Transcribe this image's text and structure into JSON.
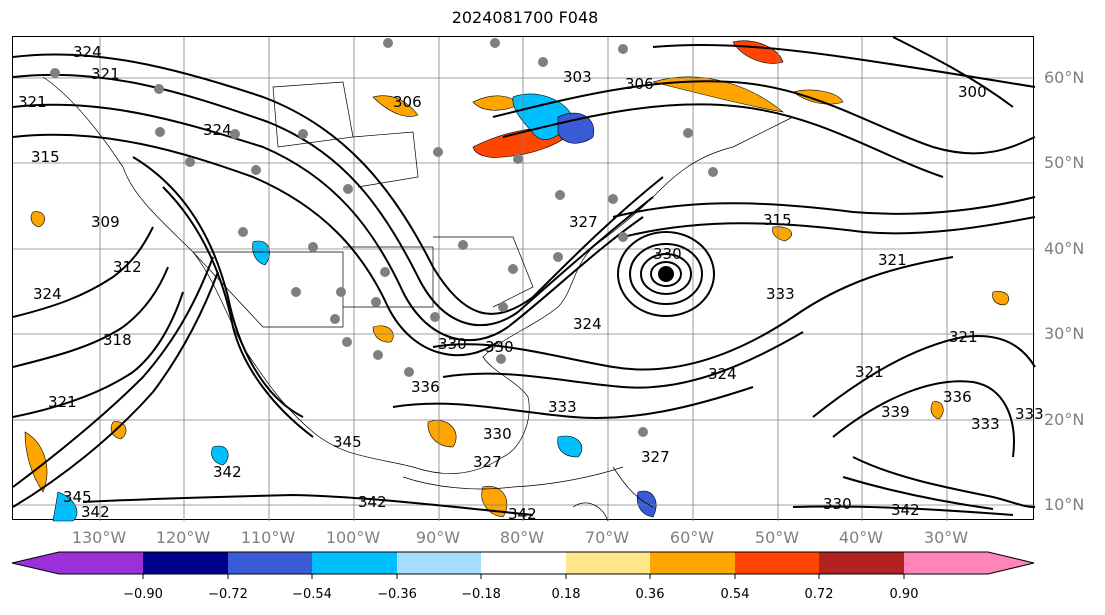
{
  "title": "2024081700 F048",
  "latitude_labels": [
    "60°N",
    "50°N",
    "40°N",
    "30°N",
    "20°N",
    "10°N"
  ],
  "longitude_labels": [
    "130°W",
    "120°W",
    "110°W",
    "100°W",
    "90°W",
    "80°W",
    "70°W",
    "60°W",
    "50°W",
    "40°W",
    "30°W"
  ],
  "contour_labels": [
    "324",
    "321",
    "321",
    "315",
    "324",
    "309",
    "312",
    "324",
    "318",
    "321",
    "306",
    "303",
    "306",
    "300",
    "315",
    "321",
    "330",
    "333",
    "330",
    "336",
    "324",
    "327",
    "324",
    "330",
    "333",
    "327",
    "321",
    "330",
    "339",
    "336",
    "333",
    "333",
    "321",
    "330",
    "342",
    "342",
    "345",
    "342",
    "342",
    "342",
    "345",
    "327"
  ],
  "colorbar": {
    "ticks": [
      "−0.90",
      "−0.72",
      "−0.54",
      "−0.36",
      "−0.18",
      "0.18",
      "0.36",
      "0.54",
      "0.72",
      "0.90"
    ],
    "colors": [
      "#9b30d9",
      "#00008b",
      "#3a5bd6",
      "#00bfff",
      "#a8dcff",
      "#ffffff",
      "#ffe68a",
      "#ffa500",
      "#ff4500",
      "#b22222",
      "#ff85b8"
    ]
  },
  "colors": {
    "grid": "#808080",
    "contour": "#000000",
    "station": "#7f7f7f"
  }
}
